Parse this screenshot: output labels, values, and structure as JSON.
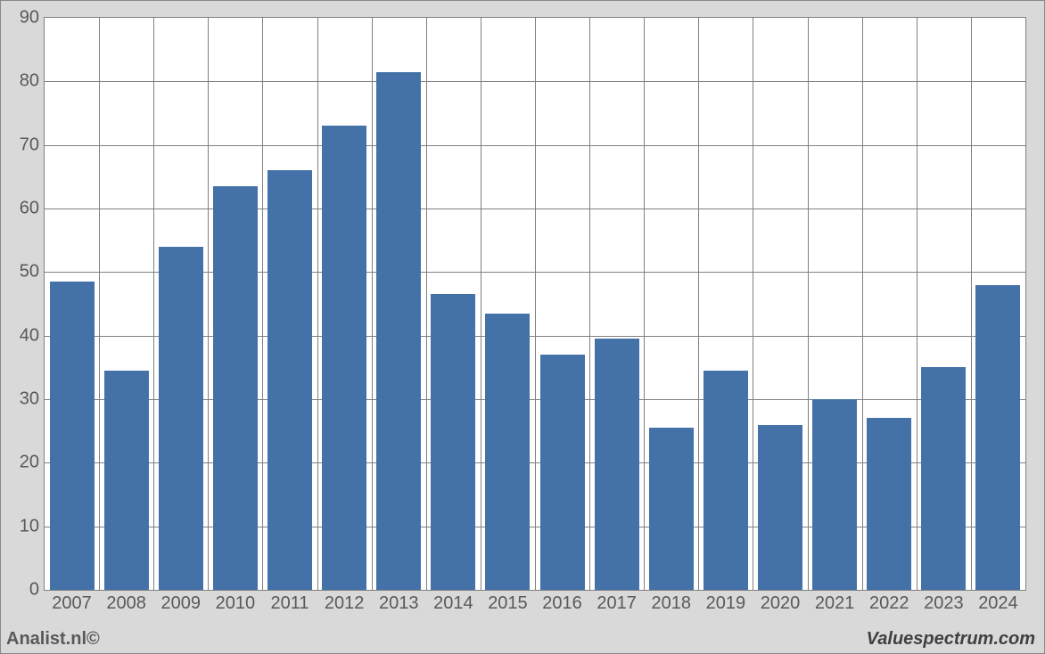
{
  "chart": {
    "type": "bar",
    "categories": [
      "2007",
      "2008",
      "2009",
      "2010",
      "2011",
      "2012",
      "2013",
      "2014",
      "2015",
      "2016",
      "2017",
      "2018",
      "2019",
      "2020",
      "2021",
      "2022",
      "2023",
      "2024"
    ],
    "values": [
      48.5,
      34.5,
      54,
      63.5,
      66,
      73,
      81.5,
      46.5,
      43.5,
      37,
      39.5,
      25.5,
      34.5,
      26,
      30,
      27,
      35,
      48
    ],
    "bar_color": "#4472a8",
    "background_color": "#ffffff",
    "outer_background": "#d9d9d9",
    "grid_color": "#808080",
    "tick_label_color": "#595959",
    "ylim": [
      0,
      90
    ],
    "ytick_step": 10,
    "yticks": [
      0,
      10,
      20,
      30,
      40,
      50,
      60,
      70,
      80,
      90
    ],
    "bar_width_ratio": 0.82,
    "label_fontsize": 20
  },
  "footer": {
    "left": "Analist.nl©",
    "right": "Valuespectrum.com",
    "left_fontsize": 20,
    "right_fontsize": 20,
    "right_italic": true
  }
}
